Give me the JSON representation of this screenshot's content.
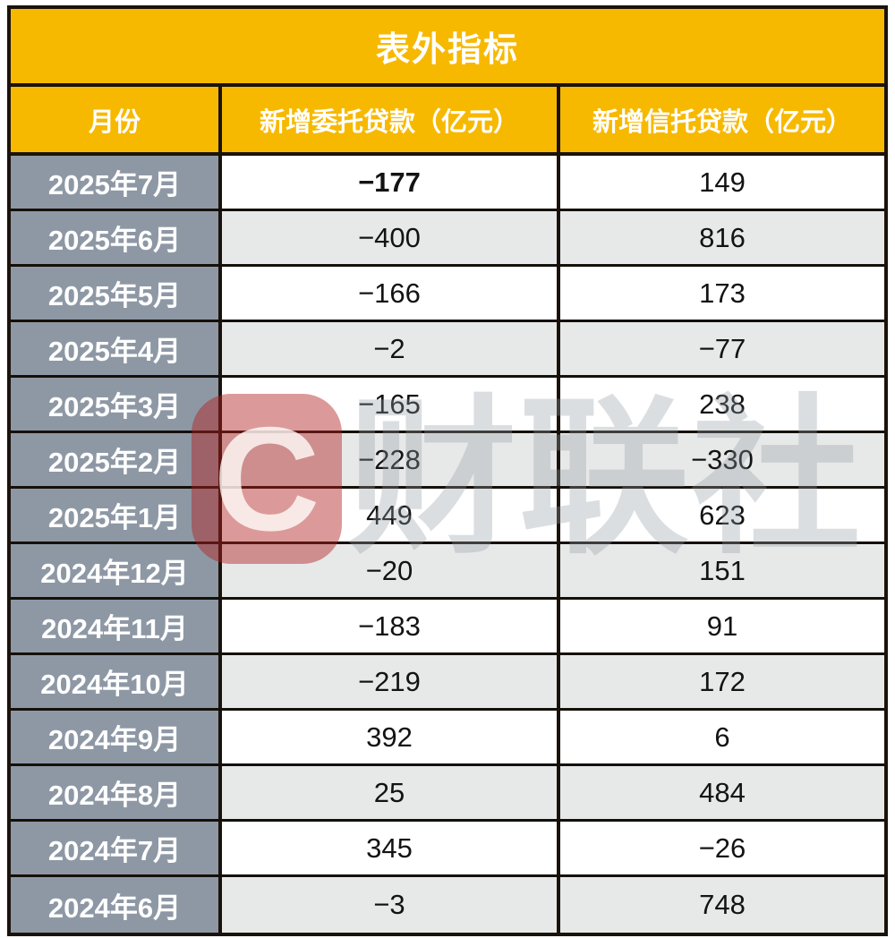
{
  "table": {
    "title": "表外指标",
    "columns": [
      "月份",
      "新增委托贷款（亿元）",
      "新增信托贷款（亿元）"
    ],
    "rows": [
      {
        "month": "2025年7月",
        "entrusted": "−177",
        "trust": "149",
        "entrusted_bold": true
      },
      {
        "month": "2025年6月",
        "entrusted": "−400",
        "trust": "816",
        "entrusted_bold": false
      },
      {
        "month": "2025年5月",
        "entrusted": "−166",
        "trust": "173",
        "entrusted_bold": false
      },
      {
        "month": "2025年4月",
        "entrusted": "−2",
        "trust": "−77",
        "entrusted_bold": false
      },
      {
        "month": "2025年3月",
        "entrusted": "−165",
        "trust": "238",
        "entrusted_bold": false
      },
      {
        "month": "2025年2月",
        "entrusted": "−228",
        "trust": "−330",
        "entrusted_bold": false
      },
      {
        "month": "2025年1月",
        "entrusted": "449",
        "trust": "623",
        "entrusted_bold": false
      },
      {
        "month": "2024年12月",
        "entrusted": "−20",
        "trust": "151",
        "entrusted_bold": false
      },
      {
        "month": "2024年11月",
        "entrusted": "−183",
        "trust": "91",
        "entrusted_bold": false
      },
      {
        "month": "2024年10月",
        "entrusted": "−219",
        "trust": "172",
        "entrusted_bold": false
      },
      {
        "month": "2024年9月",
        "entrusted": "392",
        "trust": "6",
        "entrusted_bold": false
      },
      {
        "month": "2024年8月",
        "entrusted": "25",
        "trust": "484",
        "entrusted_bold": false
      },
      {
        "month": "2024年7月",
        "entrusted": "345",
        "trust": "−26",
        "entrusted_bold": false
      },
      {
        "month": "2024年6月",
        "entrusted": "−3",
        "trust": "748",
        "entrusted_bold": false
      }
    ]
  },
  "watermark": {
    "logo_letter": "C",
    "text": "财联社"
  },
  "colors": {
    "header_bg": "#F7B900",
    "month_column_bg": "#8E98A5",
    "alt_row_bg": "#E7E9E9",
    "grid_border": "#1B130B",
    "header_text": "#FFFFFF",
    "value_text": "#131313",
    "watermark_red": "#AF201C"
  },
  "chart_data": {
    "type": "table",
    "title": "表外指标",
    "columns": [
      "月份",
      "新增委托贷款（亿元）",
      "新增信托贷款（亿元）"
    ],
    "categories": [
      "2025年7月",
      "2025年6月",
      "2025年5月",
      "2025年4月",
      "2025年3月",
      "2025年2月",
      "2025年1月",
      "2024年12月",
      "2024年11月",
      "2024年10月",
      "2024年9月",
      "2024年8月",
      "2024年7月",
      "2024年6月"
    ],
    "series": [
      {
        "name": "新增委托贷款（亿元）",
        "values": [
          -177,
          -400,
          -166,
          -2,
          -165,
          -228,
          449,
          -20,
          -183,
          -219,
          392,
          25,
          345,
          -3
        ]
      },
      {
        "name": "新增信托贷款（亿元）",
        "values": [
          149,
          816,
          173,
          -77,
          238,
          -330,
          623,
          151,
          91,
          172,
          6,
          484,
          -26,
          748
        ]
      }
    ]
  }
}
